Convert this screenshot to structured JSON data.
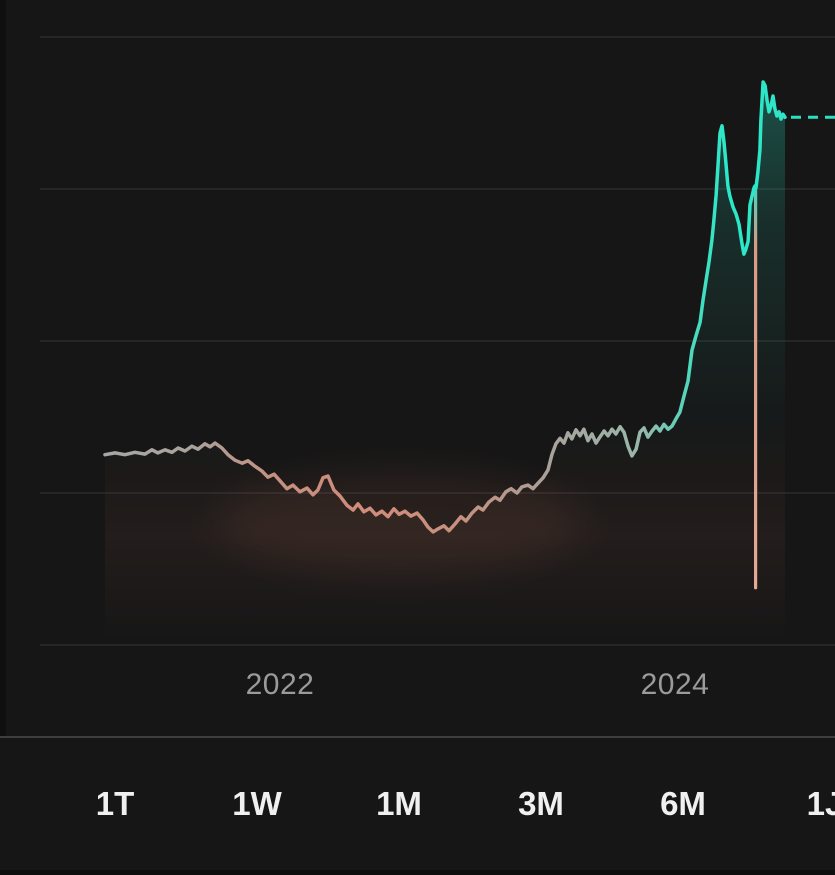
{
  "app": {
    "screen": "asset-price-chart"
  },
  "chart_data": {
    "type": "line",
    "title": "",
    "x_ticks": [
      {
        "label": "2022",
        "x": 2022
      },
      {
        "label": "2024",
        "x": 2024
      }
    ],
    "x_domain": [
      2021.114,
      2024.557
    ],
    "y_domain": [
      0,
      100
    ],
    "y_axis": {
      "visible": false,
      "unit": "relative price index (no y-axis labels shown in UI)"
    },
    "grid": "horizontal",
    "gridline_values": [
      0,
      25,
      50,
      75,
      100
    ],
    "baseline_value": 31.3,
    "current_value": 86.8,
    "anomaly_drop": {
      "x": 2024.408,
      "from": 75.5,
      "to": 9.4
    },
    "line_gradient": [
      {
        "offset": 0.0,
        "color": "#A7A7A7"
      },
      {
        "offset": 0.13,
        "color": "#A9A29C"
      },
      {
        "offset": 0.25,
        "color": "#C69080"
      },
      {
        "offset": 0.4,
        "color": "#D18C7A"
      },
      {
        "offset": 0.52,
        "color": "#C7907F"
      },
      {
        "offset": 0.62,
        "color": "#AF9C92"
      },
      {
        "offset": 0.7,
        "color": "#A4A9A2"
      },
      {
        "offset": 0.79,
        "color": "#97B8AB"
      },
      {
        "offset": 0.86,
        "color": "#4FD8BC"
      },
      {
        "offset": 0.91,
        "color": "#2BE8C9"
      },
      {
        "offset": 1.0,
        "color": "#2EE5C7"
      }
    ],
    "anomaly_gradient": [
      {
        "offset": 0.0,
        "color": "#43D6BC"
      },
      {
        "offset": 0.15,
        "color": "#DB9A86"
      },
      {
        "offset": 1.0,
        "color": "#E4A895"
      }
    ],
    "series": [
      {
        "name": "price",
        "points": [
          [
            2021.114,
            31.3
          ],
          [
            2021.165,
            31.6
          ],
          [
            2021.215,
            31.3
          ],
          [
            2021.266,
            31.7
          ],
          [
            2021.316,
            31.4
          ],
          [
            2021.352,
            32.1
          ],
          [
            2021.382,
            31.6
          ],
          [
            2021.418,
            32.1
          ],
          [
            2021.453,
            31.7
          ],
          [
            2021.484,
            32.4
          ],
          [
            2021.519,
            31.9
          ],
          [
            2021.554,
            32.7
          ],
          [
            2021.585,
            32.2
          ],
          [
            2021.62,
            33.1
          ],
          [
            2021.646,
            32.6
          ],
          [
            2021.671,
            33.2
          ],
          [
            2021.706,
            32.4
          ],
          [
            2021.737,
            31.3
          ],
          [
            2021.772,
            30.4
          ],
          [
            2021.808,
            29.9
          ],
          [
            2021.838,
            30.3
          ],
          [
            2021.873,
            29.4
          ],
          [
            2021.909,
            28.6
          ],
          [
            2021.939,
            27.6
          ],
          [
            2021.97,
            28.1
          ],
          [
            2022.0,
            27.0
          ],
          [
            2022.035,
            25.7
          ],
          [
            2022.066,
            26.3
          ],
          [
            2022.101,
            25.2
          ],
          [
            2022.137,
            25.8
          ],
          [
            2022.167,
            24.7
          ],
          [
            2022.192,
            25.5
          ],
          [
            2022.218,
            27.5
          ],
          [
            2022.243,
            27.8
          ],
          [
            2022.273,
            25.5
          ],
          [
            2022.304,
            24.5
          ],
          [
            2022.339,
            23.0
          ],
          [
            2022.37,
            22.2
          ],
          [
            2022.395,
            23.2
          ],
          [
            2022.425,
            21.9
          ],
          [
            2022.456,
            22.5
          ],
          [
            2022.486,
            21.4
          ],
          [
            2022.516,
            22.0
          ],
          [
            2022.547,
            21.1
          ],
          [
            2022.577,
            22.4
          ],
          [
            2022.603,
            21.5
          ],
          [
            2022.633,
            22.0
          ],
          [
            2022.663,
            21.2
          ],
          [
            2022.694,
            21.7
          ],
          [
            2022.724,
            20.6
          ],
          [
            2022.749,
            19.4
          ],
          [
            2022.775,
            18.6
          ],
          [
            2022.8,
            19.1
          ],
          [
            2022.83,
            19.6
          ],
          [
            2022.856,
            18.8
          ],
          [
            2022.886,
            19.9
          ],
          [
            2022.916,
            21.1
          ],
          [
            2022.942,
            20.4
          ],
          [
            2022.972,
            21.7
          ],
          [
            2023.003,
            22.7
          ],
          [
            2023.028,
            22.2
          ],
          [
            2023.058,
            23.5
          ],
          [
            2023.089,
            24.3
          ],
          [
            2023.114,
            23.8
          ],
          [
            2023.144,
            25.2
          ],
          [
            2023.17,
            25.7
          ],
          [
            2023.2,
            25.0
          ],
          [
            2023.225,
            26.0
          ],
          [
            2023.256,
            26.3
          ],
          [
            2023.281,
            25.7
          ],
          [
            2023.306,
            26.6
          ],
          [
            2023.332,
            27.5
          ],
          [
            2023.357,
            28.8
          ],
          [
            2023.377,
            31.3
          ],
          [
            2023.397,
            33.1
          ],
          [
            2023.418,
            34.0
          ],
          [
            2023.438,
            33.2
          ],
          [
            2023.458,
            34.9
          ],
          [
            2023.478,
            33.9
          ],
          [
            2023.499,
            35.4
          ],
          [
            2023.519,
            34.4
          ],
          [
            2023.539,
            35.5
          ],
          [
            2023.559,
            33.6
          ],
          [
            2023.58,
            34.7
          ],
          [
            2023.6,
            33.2
          ],
          [
            2023.62,
            34.2
          ],
          [
            2023.641,
            35.2
          ],
          [
            2023.661,
            34.4
          ],
          [
            2023.681,
            35.5
          ],
          [
            2023.701,
            34.7
          ],
          [
            2023.722,
            35.9
          ],
          [
            2023.742,
            35.0
          ],
          [
            2023.762,
            32.7
          ],
          [
            2023.782,
            31.1
          ],
          [
            2023.803,
            32.2
          ],
          [
            2023.823,
            35.0
          ],
          [
            2023.843,
            35.7
          ],
          [
            2023.863,
            34.2
          ],
          [
            2023.884,
            35.2
          ],
          [
            2023.904,
            36.0
          ],
          [
            2023.924,
            35.2
          ],
          [
            2023.944,
            36.3
          ],
          [
            2023.965,
            35.5
          ],
          [
            2023.985,
            36.0
          ],
          [
            2024.005,
            37.2
          ],
          [
            2024.025,
            38.3
          ],
          [
            2024.046,
            41.0
          ],
          [
            2024.066,
            43.4
          ],
          [
            2024.086,
            48.5
          ],
          [
            2024.106,
            50.8
          ],
          [
            2024.127,
            53.1
          ],
          [
            2024.142,
            56.7
          ],
          [
            2024.157,
            59.9
          ],
          [
            2024.172,
            63.0
          ],
          [
            2024.187,
            66.6
          ],
          [
            2024.197,
            69.9
          ],
          [
            2024.208,
            74.0
          ],
          [
            2024.218,
            78.9
          ],
          [
            2024.228,
            84.2
          ],
          [
            2024.238,
            85.4
          ],
          [
            2024.248,
            82.7
          ],
          [
            2024.258,
            79.3
          ],
          [
            2024.268,
            75.5
          ],
          [
            2024.278,
            73.8
          ],
          [
            2024.294,
            72.0
          ],
          [
            2024.309,
            70.9
          ],
          [
            2024.324,
            69.2
          ],
          [
            2024.339,
            66.1
          ],
          [
            2024.349,
            64.3
          ],
          [
            2024.359,
            65.1
          ],
          [
            2024.37,
            66.4
          ],
          [
            2024.38,
            72.4
          ],
          [
            2024.39,
            73.8
          ],
          [
            2024.4,
            75.2
          ],
          [
            2024.405,
            75.5
          ],
          [
            2024.41,
            75.2
          ],
          [
            2024.42,
            77.8
          ],
          [
            2024.43,
            81.4
          ],
          [
            2024.435,
            86.3
          ],
          [
            2024.446,
            92.6
          ],
          [
            2024.456,
            92.0
          ],
          [
            2024.466,
            89.6
          ],
          [
            2024.476,
            87.7
          ],
          [
            2024.486,
            88.7
          ],
          [
            2024.496,
            90.3
          ],
          [
            2024.506,
            88.2
          ],
          [
            2024.516,
            87.0
          ],
          [
            2024.527,
            87.7
          ],
          [
            2024.537,
            86.5
          ],
          [
            2024.547,
            87.3
          ],
          [
            2024.557,
            86.8
          ]
        ]
      }
    ],
    "legend": null
  },
  "timeframe_bar": {
    "options": [
      {
        "id": "1t",
        "label": "1T"
      },
      {
        "id": "1w",
        "label": "1W"
      },
      {
        "id": "1m",
        "label": "1M"
      },
      {
        "id": "3m",
        "label": "3M"
      },
      {
        "id": "6m",
        "label": "6M"
      },
      {
        "id": "1j",
        "label": "1J"
      }
    ]
  },
  "colors": {
    "background": "#161616",
    "gridline": "#2A2A2A",
    "divider": "#3E3E3E",
    "accent_teal": "#2BE5C6",
    "loss_salmon": "#D68C78",
    "neutral_line": "#A7A7A7",
    "dashed_line": "#2BDFC2",
    "dip_glow": "#C9745C",
    "tick_text": "#9B9B9B",
    "button_text": "#F0F0F0"
  }
}
